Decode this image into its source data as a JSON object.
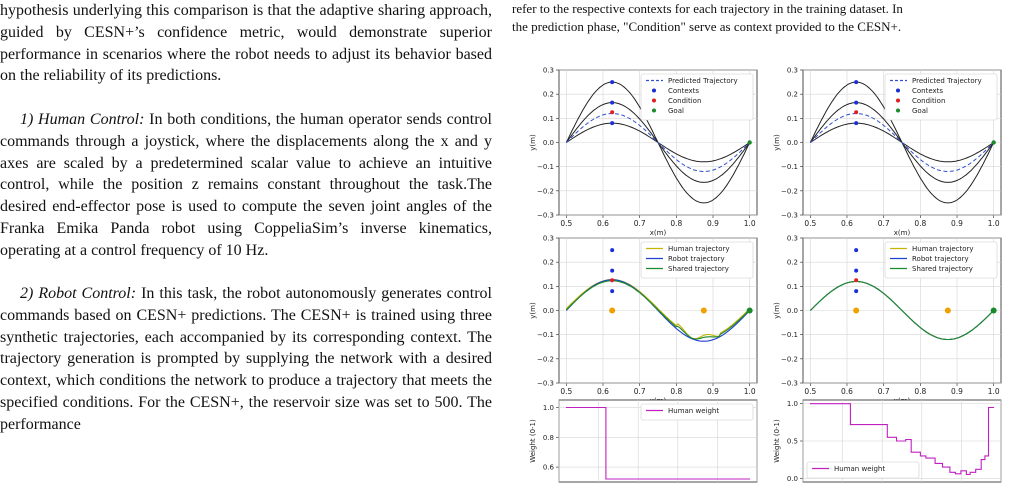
{
  "left_column": {
    "p0": "hypothesis underlying this comparison is that the adaptive sharing approach, guided by CESN+’s confidence metric, would demonstrate superior performance in scenarios where the robot needs to adjust its behavior based on the reliability of its predictions.",
    "s1_title": "1) Human Control:",
    "s1_text": " In both conditions, the human operator sends control commands through a joystick, where the displacements along the x and y axes are scaled by a predetermined scalar value to achieve an intuitive control, while the position z remains constant throughout the task.The desired end-effector pose is used to compute the seven joint angles of the Franka Emika Panda robot using CoppeliaSim’s inverse kinematics, operating at a control frequency of 10 Hz.",
    "s2_title": "2) Robot Control:",
    "s2_text": " In this task, the robot autonomously generates control commands based on CESN+ predictions. The CESN+ is trained using three synthetic trajectories, each accompanied by its corresponding context. The trajectory generation is prompted by supplying the network with a desired context, which conditions the network to produce a trajectory that meets the specified conditions. For the CESN+, the reservoir size was set to 500. The performance"
  },
  "caption": {
    "line1": "refer to the respective contexts for each trajectory in the training dataset. In",
    "line2": "the prediction phase, \"Condition\" serve as context provided to the CESN+."
  },
  "figure": {
    "xlabel": "x(m)",
    "ylabel_traj": "y(m)",
    "ylabel_weight": "Weight (0-1)",
    "traj_xticks": [
      "0.5",
      "0.6",
      "0.7",
      "0.8",
      "0.9",
      "1.0"
    ],
    "traj_yticks": [
      "0.3",
      "0.2",
      "0.1",
      "0.0",
      "−0.1",
      "−0.2",
      "−0.3"
    ],
    "weight_yticks": [
      "1.0",
      "0.8",
      "0.6"
    ],
    "weight_yticks_right": [
      "1.0",
      "0.5",
      "0.0"
    ],
    "legend_top": [
      "Predicted Trajectory",
      "Contexts",
      "Condition",
      "Goal"
    ],
    "legend_mid": [
      "Human trajectory",
      "Robot trajectory",
      "Shared trajectory"
    ],
    "legend_bottom": [
      "Human weight"
    ]
  },
  "colors": {
    "training": "#222222",
    "predicted": "#3050d0",
    "contexts": "#1a2fd8",
    "condition": "#e02020",
    "goal": "#1a8a2a",
    "human": "#c8b400",
    "robot": "#1f3fcf",
    "shared": "#1e8a2e",
    "obstacle": "#f0a000",
    "weight": "#c020c0"
  },
  "chart_data": [
    {
      "type": "line",
      "panel": "top-left",
      "xlim": [
        0.48,
        1.02
      ],
      "ylim": [
        -0.3,
        0.3
      ],
      "grid": true,
      "legend": "top-right",
      "series": [
        {
          "name": "Predicted Trajectory",
          "style": "dashed",
          "amplitude": 0.12
        }
      ],
      "training_amplitudes": [
        0.08,
        0.165,
        0.25
      ],
      "contexts": {
        "x": [
          0.625,
          0.625,
          0.625
        ],
        "y": [
          0.25,
          0.165,
          0.08
        ]
      },
      "condition": {
        "x": [
          0.625
        ],
        "y": [
          0.125
        ]
      },
      "goal": {
        "x": [
          1.0
        ],
        "y": [
          0.0
        ]
      }
    },
    {
      "type": "line",
      "panel": "top-right",
      "xlim": [
        0.48,
        1.02
      ],
      "ylim": [
        -0.3,
        0.3
      ],
      "grid": true,
      "legend": "top-right",
      "series": [
        {
          "name": "Predicted Trajectory",
          "style": "dashed",
          "amplitude": 0.12
        }
      ],
      "training_amplitudes": [
        0.08,
        0.165,
        0.25
      ],
      "contexts": {
        "x": [
          0.625,
          0.625,
          0.625
        ],
        "y": [
          0.25,
          0.165,
          0.08
        ]
      },
      "condition": {
        "x": [
          0.625
        ],
        "y": [
          0.125
        ]
      },
      "goal": {
        "x": [
          1.0
        ],
        "y": [
          0.0
        ]
      }
    },
    {
      "type": "line",
      "panel": "middle-left",
      "xlim": [
        0.48,
        1.02
      ],
      "ylim": [
        -0.3,
        0.3
      ],
      "grid": true,
      "legend": "top-right",
      "series": [
        {
          "name": "Human trajectory"
        },
        {
          "name": "Robot trajectory"
        },
        {
          "name": "Shared trajectory"
        }
      ],
      "contexts": {
        "x": [
          0.625,
          0.625,
          0.625
        ],
        "y": [
          0.25,
          0.165,
          0.08
        ]
      },
      "condition": {
        "x": [
          0.625
        ],
        "y": [
          0.125
        ]
      },
      "obstacles": {
        "x": [
          0.625,
          0.875
        ],
        "y": [
          0.0,
          0.0
        ]
      },
      "goal": {
        "x": [
          1.0
        ],
        "y": [
          0.0
        ]
      }
    },
    {
      "type": "line",
      "panel": "middle-right",
      "xlim": [
        0.48,
        1.02
      ],
      "ylim": [
        -0.3,
        0.3
      ],
      "grid": true,
      "legend": "top-right",
      "series": [
        {
          "name": "Human trajectory"
        },
        {
          "name": "Robot trajectory"
        },
        {
          "name": "Shared trajectory"
        }
      ],
      "contexts": {
        "x": [
          0.625,
          0.625,
          0.625
        ],
        "y": [
          0.25,
          0.165,
          0.08
        ]
      },
      "condition": {
        "x": [
          0.625
        ],
        "y": [
          0.125
        ]
      },
      "obstacles": {
        "x": [
          0.625,
          0.875
        ],
        "y": [
          0.0,
          0.0
        ]
      },
      "goal": {
        "x": [
          1.0
        ],
        "y": [
          0.0
        ]
      }
    },
    {
      "type": "line",
      "panel": "bottom-left",
      "ylim": [
        0.5,
        1.05
      ],
      "grid": true,
      "legend": "top-right",
      "series": [
        {
          "name": "Human weight",
          "x": [
            0,
            0.217,
            0.217,
            1.0
          ],
          "y": [
            1.0,
            1.0,
            0.52,
            0.52
          ]
        }
      ]
    },
    {
      "type": "line",
      "panel": "bottom-right",
      "ylim": [
        -0.05,
        1.05
      ],
      "grid": true,
      "legend": "bottom-left",
      "series": [
        {
          "name": "Human weight",
          "x": [
            0,
            0.22,
            0.22,
            0.42,
            0.42,
            0.47,
            0.47,
            0.52,
            0.52,
            0.55,
            0.55,
            0.6,
            0.6,
            0.63,
            0.63,
            0.68,
            0.68,
            0.72,
            0.72,
            0.76,
            0.76,
            0.79,
            0.79,
            0.82,
            0.82,
            0.85,
            0.85,
            0.87,
            0.87,
            0.9,
            0.9,
            0.93,
            0.93,
            0.95,
            0.95,
            0.97,
            0.97,
            1.0
          ],
          "y": [
            1.0,
            1.0,
            0.72,
            0.72,
            0.55,
            0.55,
            0.5,
            0.5,
            0.52,
            0.52,
            0.35,
            0.35,
            0.3,
            0.3,
            0.27,
            0.27,
            0.2,
            0.2,
            0.15,
            0.15,
            0.08,
            0.08,
            0.06,
            0.06,
            0.1,
            0.1,
            0.05,
            0.05,
            0.08,
            0.08,
            0.12,
            0.12,
            0.25,
            0.25,
            0.3,
            0.3,
            0.95,
            0.95
          ]
        }
      ]
    }
  ]
}
